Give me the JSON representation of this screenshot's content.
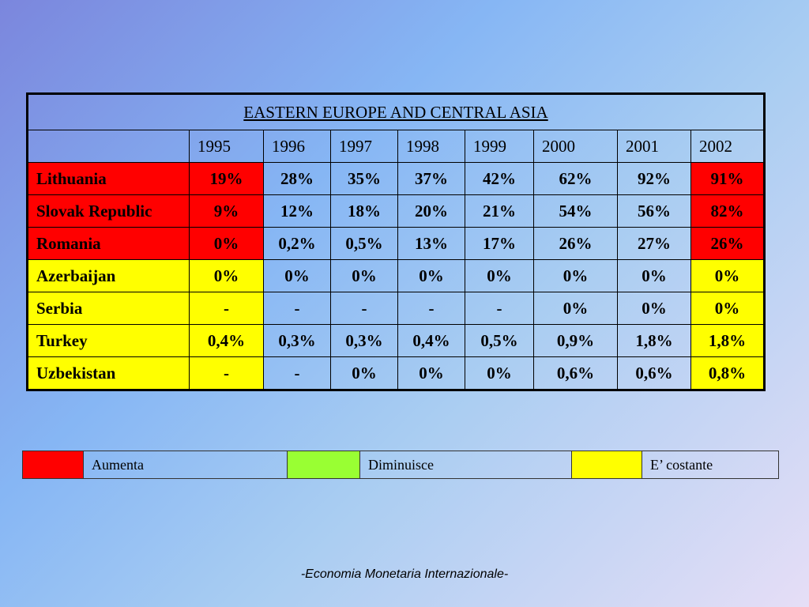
{
  "table": {
    "title": "EASTERN EUROPE AND CENTRAL ASIA",
    "years": [
      "1995",
      "1996",
      "1997",
      "1998",
      "1999",
      "2000",
      "2001",
      "2002"
    ],
    "rows": [
      {
        "country": "Lithuania",
        "status": "red",
        "values": [
          "19%",
          "28%",
          "35%",
          "37%",
          "42%",
          "62%",
          "92%",
          "91%"
        ]
      },
      {
        "country": "Slovak Republic",
        "status": "red",
        "values": [
          "9%",
          "12%",
          "18%",
          "20%",
          "21%",
          "54%",
          "56%",
          "82%"
        ]
      },
      {
        "country": "Romania",
        "status": "red",
        "values": [
          "0%",
          "0,2%",
          "0,5%",
          "13%",
          "17%",
          "26%",
          "27%",
          "26%"
        ]
      },
      {
        "country": "Azerbaijan",
        "status": "yellow",
        "values": [
          "0%",
          "0%",
          "0%",
          "0%",
          "0%",
          "0%",
          "0%",
          "0%"
        ]
      },
      {
        "country": "Serbia",
        "status": "yellow",
        "values": [
          "-",
          "-",
          "-",
          "-",
          "-",
          "0%",
          "0%",
          "0%"
        ]
      },
      {
        "country": "Turkey",
        "status": "yellow",
        "values": [
          "0,4%",
          "0,3%",
          "0,3%",
          "0,4%",
          "0,5%",
          "0,9%",
          "1,8%",
          "1,8%"
        ]
      },
      {
        "country": "Uzbekistan",
        "status": "yellow",
        "values": [
          "-",
          "-",
          "0%",
          "0%",
          "0%",
          "0,6%",
          "0,6%",
          "0,8%"
        ]
      }
    ]
  },
  "legend": [
    {
      "color": "#ff0000",
      "label": "Aumenta"
    },
    {
      "color": "#99ff33",
      "label": "Diminuisce"
    },
    {
      "color": "#ffff00",
      "label": "E’ costante"
    }
  ],
  "colors": {
    "red": "#ff0000",
    "yellow": "#ffff00"
  },
  "footer": "-Economia Monetaria Internazionale-"
}
